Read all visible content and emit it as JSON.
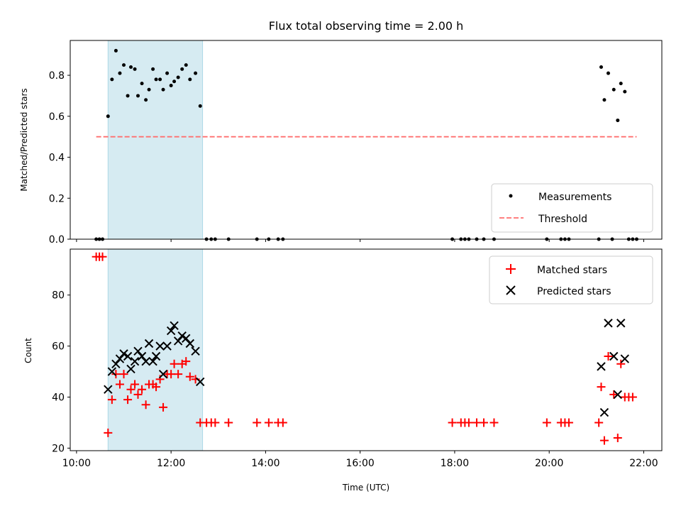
{
  "chart_data": [
    {
      "type": "scatter",
      "title": "Flux total observing time = 2.00 h",
      "xlabel": "",
      "ylabel": "Matched/Predicted stars",
      "xlim": [
        "09:52",
        "22:23"
      ],
      "ylim": [
        0,
        0.97
      ],
      "x_ticks": [
        "10:00",
        "12:00",
        "14:00",
        "16:00",
        "18:00",
        "20:00",
        "22:00"
      ],
      "y_ticks": [
        "0.0",
        "0.2",
        "0.4",
        "0.6",
        "0.8"
      ],
      "y_tick_values": [
        0,
        0.2,
        0.4,
        0.6,
        0.8
      ],
      "grid": false,
      "legend_position": "lower right",
      "shaded_interval": {
        "start": "10:40",
        "end": "12:40",
        "color": "#add8e6"
      },
      "series": [
        {
          "name": "Measurements",
          "kind": "scatter",
          "marker": "dot",
          "color": "#000000",
          "points": [
            [
              "10:25",
              0
            ],
            [
              "10:29",
              0
            ],
            [
              "10:33",
              0
            ],
            [
              "10:40",
              0.6
            ],
            [
              "10:45",
              0.78
            ],
            [
              "10:50",
              0.92
            ],
            [
              "10:55",
              0.81
            ],
            [
              "11:00",
              0.85
            ],
            [
              "11:05",
              0.7
            ],
            [
              "11:09",
              0.84
            ],
            [
              "11:14",
              0.83
            ],
            [
              "11:18",
              0.7
            ],
            [
              "11:23",
              0.76
            ],
            [
              "11:28",
              0.68
            ],
            [
              "11:32",
              0.73
            ],
            [
              "11:37",
              0.83
            ],
            [
              "11:41",
              0.78
            ],
            [
              "11:46",
              0.78
            ],
            [
              "11:50",
              0.73
            ],
            [
              "11:55",
              0.81
            ],
            [
              "12:00",
              0.75
            ],
            [
              "12:04",
              0.77
            ],
            [
              "12:09",
              0.79
            ],
            [
              "12:14",
              0.83
            ],
            [
              "12:19",
              0.85
            ],
            [
              "12:24",
              0.78
            ],
            [
              "12:31",
              0.81
            ],
            [
              "12:37",
              0.65
            ],
            [
              "12:45",
              0
            ],
            [
              "12:51",
              0
            ],
            [
              "12:56",
              0
            ],
            [
              "13:13",
              0
            ],
            [
              "13:49",
              0
            ],
            [
              "14:04",
              0
            ],
            [
              "14:16",
              0
            ],
            [
              "14:22",
              0
            ],
            [
              "17:57",
              0
            ],
            [
              "18:08",
              0
            ],
            [
              "18:13",
              0
            ],
            [
              "18:18",
              0
            ],
            [
              "18:28",
              0
            ],
            [
              "18:37",
              0
            ],
            [
              "18:50",
              0
            ],
            [
              "19:57",
              0
            ],
            [
              "20:15",
              0
            ],
            [
              "20:20",
              0
            ],
            [
              "20:25",
              0
            ],
            [
              "21:03",
              0
            ],
            [
              "21:20",
              0
            ],
            [
              "21:41",
              0
            ],
            [
              "21:46",
              0
            ],
            [
              "21:51",
              0
            ],
            [
              "21:06",
              0.84
            ],
            [
              "21:10",
              0.68
            ],
            [
              "21:15",
              0.81
            ],
            [
              "21:22",
              0.73
            ],
            [
              "21:27",
              0.58
            ],
            [
              "21:31",
              0.76
            ],
            [
              "21:36",
              0.72
            ]
          ]
        },
        {
          "name": "Threshold",
          "kind": "line",
          "dash": "dashed",
          "color": "#ff6f6f",
          "points": [
            [
              "10:25",
              0.5
            ],
            [
              "21:51",
              0.5
            ]
          ]
        }
      ]
    },
    {
      "type": "scatter",
      "title": "",
      "xlabel": "Time (UTC)",
      "ylabel": "Count",
      "xlim": [
        "09:52",
        "22:23"
      ],
      "ylim": [
        19,
        98
      ],
      "x_ticks": [
        "10:00",
        "12:00",
        "14:00",
        "16:00",
        "18:00",
        "20:00",
        "22:00"
      ],
      "y_ticks": [
        "20",
        "40",
        "60",
        "80"
      ],
      "y_tick_values": [
        20,
        40,
        60,
        80
      ],
      "grid": false,
      "legend_position": "upper right",
      "shaded_interval": {
        "start": "10:40",
        "end": "12:40",
        "color": "#add8e6"
      },
      "series": [
        {
          "name": "Matched stars",
          "kind": "scatter",
          "marker": "plus",
          "color": "#ff0000",
          "points": [
            [
              "10:25",
              95
            ],
            [
              "10:29",
              95
            ],
            [
              "10:33",
              95
            ],
            [
              "10:40",
              26
            ],
            [
              "10:45",
              39
            ],
            [
              "10:50",
              49
            ],
            [
              "10:55",
              45
            ],
            [
              "11:00",
              49
            ],
            [
              "11:05",
              39
            ],
            [
              "11:09",
              43
            ],
            [
              "11:14",
              45
            ],
            [
              "11:18",
              41
            ],
            [
              "11:23",
              43
            ],
            [
              "11:28",
              37
            ],
            [
              "11:32",
              45
            ],
            [
              "11:37",
              45
            ],
            [
              "11:41",
              44
            ],
            [
              "11:46",
              47
            ],
            [
              "11:50",
              36
            ],
            [
              "11:55",
              49
            ],
            [
              "12:00",
              49
            ],
            [
              "12:04",
              53
            ],
            [
              "12:09",
              49
            ],
            [
              "12:14",
              53
            ],
            [
              "12:19",
              54
            ],
            [
              "12:24",
              48
            ],
            [
              "12:31",
              47
            ],
            [
              "12:37",
              30
            ],
            [
              "12:45",
              30
            ],
            [
              "12:51",
              30
            ],
            [
              "12:56",
              30
            ],
            [
              "13:13",
              30
            ],
            [
              "13:49",
              30
            ],
            [
              "14:04",
              30
            ],
            [
              "14:16",
              30
            ],
            [
              "14:22",
              30
            ],
            [
              "17:57",
              30
            ],
            [
              "18:08",
              30
            ],
            [
              "18:13",
              30
            ],
            [
              "18:18",
              30
            ],
            [
              "18:28",
              30
            ],
            [
              "18:37",
              30
            ],
            [
              "18:50",
              30
            ],
            [
              "19:57",
              30
            ],
            [
              "20:15",
              30
            ],
            [
              "20:20",
              30
            ],
            [
              "20:25",
              30
            ],
            [
              "21:03",
              30
            ],
            [
              "21:06",
              44
            ],
            [
              "21:10",
              23
            ],
            [
              "21:15",
              56
            ],
            [
              "21:22",
              41
            ],
            [
              "21:27",
              24
            ],
            [
              "21:31",
              53
            ],
            [
              "21:36",
              40
            ],
            [
              "21:41",
              40
            ],
            [
              "21:46",
              40
            ]
          ]
        },
        {
          "name": "Predicted stars",
          "kind": "scatter",
          "marker": "x",
          "color": "#000000",
          "points": [
            [
              "10:40",
              43
            ],
            [
              "10:45",
              50
            ],
            [
              "10:50",
              53
            ],
            [
              "10:55",
              55
            ],
            [
              "11:00",
              57
            ],
            [
              "11:05",
              56
            ],
            [
              "11:09",
              51
            ],
            [
              "11:14",
              54
            ],
            [
              "11:18",
              58
            ],
            [
              "11:23",
              56
            ],
            [
              "11:28",
              54
            ],
            [
              "11:32",
              61
            ],
            [
              "11:37",
              54
            ],
            [
              "11:41",
              56
            ],
            [
              "11:46",
              60
            ],
            [
              "11:50",
              49
            ],
            [
              "11:55",
              60
            ],
            [
              "12:00",
              66
            ],
            [
              "12:04",
              68
            ],
            [
              "12:09",
              62
            ],
            [
              "12:14",
              64
            ],
            [
              "12:19",
              63
            ],
            [
              "12:24",
              61
            ],
            [
              "12:31",
              58
            ],
            [
              "12:37",
              46
            ],
            [
              "21:06",
              52
            ],
            [
              "21:10",
              34
            ],
            [
              "21:15",
              69
            ],
            [
              "21:22",
              56
            ],
            [
              "21:27",
              41
            ],
            [
              "21:31",
              69
            ],
            [
              "21:36",
              55
            ]
          ]
        }
      ]
    }
  ]
}
